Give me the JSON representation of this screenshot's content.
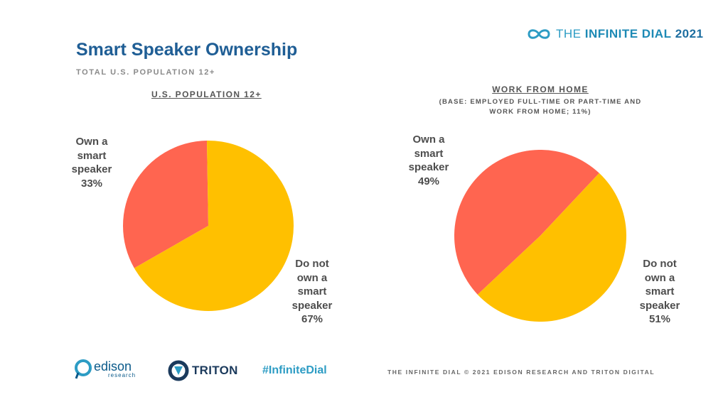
{
  "header": {
    "title": "Smart Speaker Ownership",
    "subtitle": "TOTAL U.S. POPULATION 12+"
  },
  "brand": {
    "text_light": "THE ",
    "text_bold": "INFINITE DIAL",
    "year": "2021",
    "icon": "infinity-icon"
  },
  "colors": {
    "own": "#FF6550",
    "not_own": "#FFC000",
    "title": "#1F5E95",
    "accent": "#2D9CC4"
  },
  "chart_data": [
    {
      "type": "pie",
      "title": "U.S. POPULATION 12+",
      "labels": [
        "Own a smart speaker",
        "Do not own a smart speaker"
      ],
      "values": [
        33,
        67
      ],
      "slice_labels": [
        "Own a\nsmart\nspeaker\n33%",
        "Do not\nown a\nsmart\nspeaker\n67%"
      ]
    },
    {
      "type": "pie",
      "title": "WORK FROM HOME",
      "subtitle": "(BASE: EMPLOYED FULL-TIME OR PART-TIME AND WORK FROM HOME; 11%)",
      "labels": [
        "Own a smart speaker",
        "Do not own a smart speaker"
      ],
      "values": [
        49,
        51
      ],
      "slice_labels": [
        "Own a\nsmart\nspeaker\n49%",
        "Do not\nown a\nsmart\nspeaker\n51%"
      ]
    }
  ],
  "footer": {
    "edison_word": "edison",
    "edison_sub": "research",
    "triton_word": "TRITON",
    "hashtag": "#InfiniteDial",
    "copyright": "THE INFINITE DIAL   © 2021 EDISON RESEARCH AND TRITON DIGITAL"
  }
}
